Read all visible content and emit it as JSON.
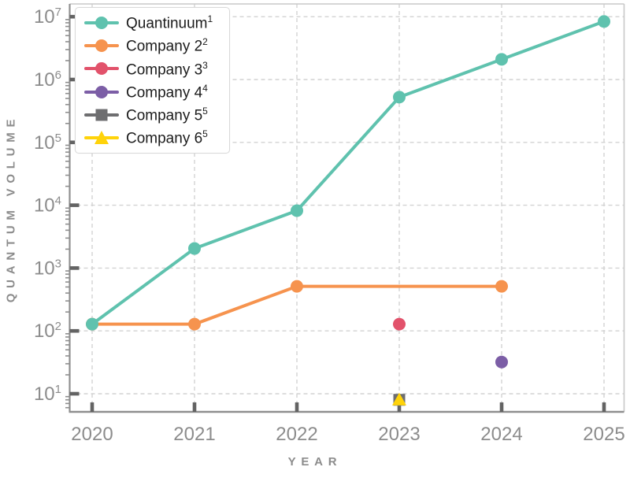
{
  "chart_data": {
    "type": "line",
    "title": "",
    "xlabel": "YEAR",
    "ylabel": "QUANTUM VOLUME",
    "x_axis": {
      "ticks": [
        2020,
        2021,
        2022,
        2023,
        2024,
        2025
      ],
      "lim": [
        2019.78,
        2025.2
      ]
    },
    "y_axis": {
      "scale": "log",
      "tick_exponents": [
        1,
        2,
        3,
        4,
        5,
        6,
        7
      ],
      "lim": [
        5,
        16000000
      ]
    },
    "grid": {
      "style": "dashed",
      "which": "both-major"
    },
    "legend_position": "upper-left",
    "series": [
      {
        "name": "Quantinuum",
        "sup": "1",
        "color": "#5fc2ae",
        "marker": "circle",
        "line": true,
        "z": 2,
        "points": [
          [
            2020,
            128
          ],
          [
            2021,
            2048
          ],
          [
            2022,
            8192
          ],
          [
            2023,
            524288
          ],
          [
            2024,
            2097152
          ],
          [
            2025,
            8388608
          ]
        ]
      },
      {
        "name": "Company 2",
        "sup": "2",
        "color": "#f6934e",
        "marker": "circle",
        "line": true,
        "z": 1,
        "points": [
          [
            2020,
            128
          ],
          [
            2021,
            128
          ],
          [
            2022,
            512
          ],
          [
            2024,
            512
          ]
        ]
      },
      {
        "name": "Company 3",
        "sup": "3",
        "color": "#e2526b",
        "marker": "circle",
        "line": false,
        "z": 3,
        "points": [
          [
            2023,
            128
          ]
        ]
      },
      {
        "name": "Company 4",
        "sup": "4",
        "color": "#7c5ea6",
        "marker": "circle",
        "line": false,
        "z": 3,
        "points": [
          [
            2024,
            32
          ]
        ]
      },
      {
        "name": "Company 5",
        "sup": "5",
        "color": "#6e6e70",
        "marker": "square",
        "line": false,
        "z": 3,
        "points": [
          [
            2023,
            8
          ]
        ]
      },
      {
        "name": "Company 6",
        "sup": "5",
        "color": "#ffd30a",
        "marker": "triangle",
        "line": false,
        "z": 4,
        "points": [
          [
            2023,
            8
          ]
        ]
      }
    ],
    "colors": {
      "grid": "#d2d2d2",
      "spine_main": "#8f8f8f",
      "spine_light": "#c9c9c9",
      "tick_major": "#636363",
      "tick_minor": "#8f8f8f",
      "tick_label": "#8c8c8c",
      "axis_title": "#8c8c8c",
      "legend_border": "#d9d9d9",
      "legend_text": "#1c1c1c",
      "background": "#ffffff"
    }
  }
}
